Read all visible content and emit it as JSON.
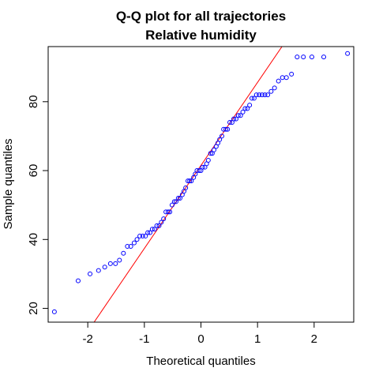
{
  "chart_data": {
    "type": "scatter",
    "title": "Q-Q plot for all trajectories",
    "subtitle": "Relative humidity",
    "xlabel": "Theoretical quantiles",
    "ylabel": "Sample quantiles",
    "xlim": [
      -2.7,
      2.7
    ],
    "ylim": [
      16,
      96
    ],
    "xticks": [
      -2,
      -1,
      0,
      1,
      2
    ],
    "xtick_labels": [
      "-2",
      "-1",
      "0",
      "1",
      "2"
    ],
    "yticks": [
      20,
      40,
      60,
      80
    ],
    "ytick_labels": [
      "20",
      "40",
      "60",
      "80"
    ],
    "grid": false,
    "legend": "none",
    "colors": {
      "points": "#0000ff",
      "line": "#ff0000",
      "axes": "#000000"
    },
    "reference_line": {
      "intercept": 61.5,
      "slope": 24.1
    },
    "x": [
      -2.59,
      -2.17,
      -1.96,
      -1.81,
      -1.7,
      -1.6,
      -1.51,
      -1.44,
      -1.37,
      -1.3,
      -1.24,
      -1.18,
      -1.13,
      -1.08,
      -1.03,
      -0.98,
      -0.94,
      -0.9,
      -0.86,
      -0.82,
      -0.78,
      -0.74,
      -0.7,
      -0.66,
      -0.62,
      -0.58,
      -0.55,
      -0.51,
      -0.47,
      -0.44,
      -0.4,
      -0.37,
      -0.33,
      -0.3,
      -0.27,
      -0.23,
      -0.2,
      -0.17,
      -0.13,
      -0.1,
      -0.07,
      -0.03,
      0.0,
      0.03,
      0.07,
      0.1,
      0.13,
      0.17,
      0.2,
      0.23,
      0.27,
      0.3,
      0.33,
      0.37,
      0.4,
      0.44,
      0.47,
      0.51,
      0.55,
      0.58,
      0.62,
      0.66,
      0.7,
      0.74,
      0.78,
      0.82,
      0.86,
      0.9,
      0.94,
      0.98,
      1.03,
      1.08,
      1.13,
      1.18,
      1.24,
      1.3,
      1.37,
      1.44,
      1.51,
      1.6,
      1.7,
      1.81,
      1.96,
      2.17,
      2.59
    ],
    "y": [
      19,
      28,
      30,
      31,
      32,
      33,
      33,
      34,
      36,
      38,
      38,
      39,
      40,
      41,
      41,
      41,
      42,
      42,
      43,
      43,
      44,
      44,
      45,
      46,
      48,
      48,
      48,
      50,
      51,
      51,
      52,
      52,
      53,
      54,
      55,
      57,
      57,
      57,
      58,
      59,
      60,
      60,
      60,
      61,
      61,
      62,
      63,
      65,
      65,
      66,
      67,
      68,
      69,
      70,
      72,
      72,
      72,
      74,
      74,
      75,
      75,
      76,
      76,
      77,
      78,
      78,
      79,
      81,
      81,
      82,
      82,
      82,
      82,
      82,
      83,
      84,
      86,
      87,
      87,
      88,
      93,
      93,
      93,
      93,
      94
    ]
  }
}
